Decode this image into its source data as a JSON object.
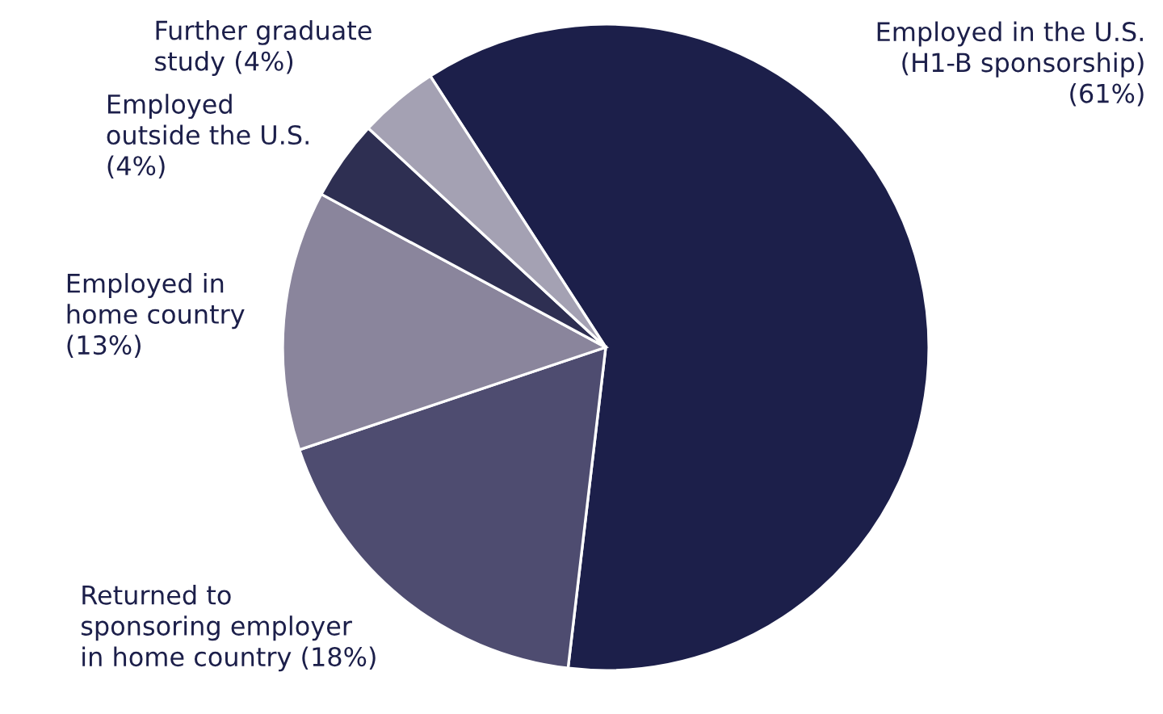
{
  "chart_data": {
    "type": "pie",
    "categories": [
      "Employed in the U.S.\n(H1-B sponsorship)\n(61%)",
      "Returned to\nsponsoring employer\nin home country (18%)",
      "Employed in\nhome country\n(13%)",
      "Employed\noutside the U.S.\n(4%)",
      "Further graduate\nstudy (4%)"
    ],
    "values": [
      61,
      18,
      13,
      4,
      4
    ],
    "colors": [
      "#1c1f4a",
      "#4e4c70",
      "#8a859c",
      "#2e2f52",
      "#a4a1b3"
    ]
  }
}
